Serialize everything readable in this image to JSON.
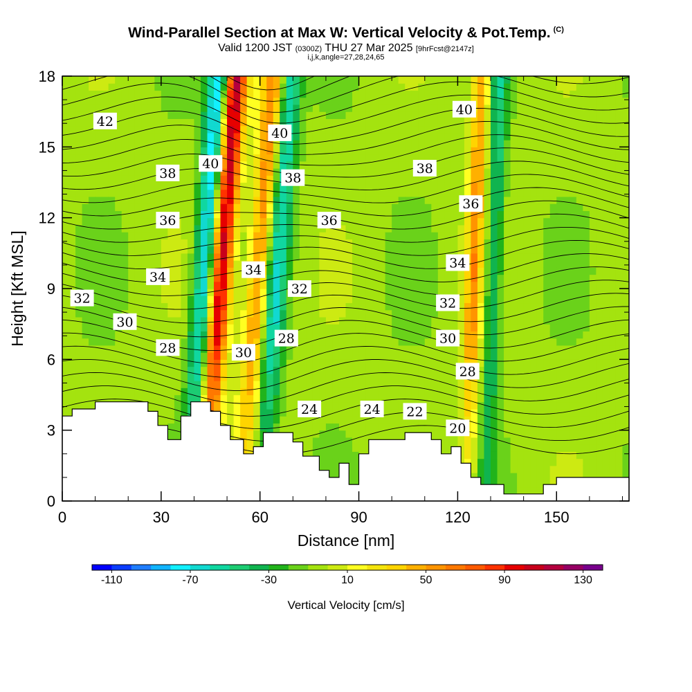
{
  "header": {
    "title": "Wind-Parallel Section at Max W: Vertical Velocity & Pot.Temp.",
    "title_mark": "(C)",
    "valid_prefix": "Valid 1200 JST",
    "valid_utc": "(0300Z)",
    "valid_date": "THU 27 Mar 2025",
    "forecast": "[9hrFcst@2147z]",
    "indices": "i,j,k,angle=27,28,24,65"
  },
  "chart_data": {
    "type": "heatmap",
    "xlabel": "Distance [nm]",
    "ylabel": "Height [Kft MSL]",
    "xlim": [
      0,
      172
    ],
    "ylim": [
      0,
      18
    ],
    "x_ticks": [
      "0",
      "30",
      "60",
      "90",
      "120",
      "150"
    ],
    "y_ticks": [
      "0",
      "3",
      "6",
      "9",
      "12",
      "15",
      "18"
    ],
    "colorbar": {
      "title": "Vertical Velocity [cm/s]",
      "tick_labels": [
        "-110",
        "-70",
        "-30",
        "10",
        "50",
        "90",
        "130"
      ],
      "levels_min": -120,
      "levels_max": 140,
      "level_step": 10,
      "colors": [
        "#0000ff",
        "#0a3cff",
        "#1f7dff",
        "#11b4ff",
        "#12f0ff",
        "#11d9d0",
        "#10d7a0",
        "#1ccc72",
        "#10b44f",
        "#21b31b",
        "#6ad21a",
        "#a4e30f",
        "#cdea12",
        "#ffff21",
        "#f4e40c",
        "#ffd400",
        "#ffb000",
        "#ff9400",
        "#ff7800",
        "#ff5a00",
        "#ff3200",
        "#e60000",
        "#c8001b",
        "#b4003e",
        "#960064",
        "#78008c"
      ]
    },
    "velocity_field": [
      {
        "label": "updraft",
        "x": 48,
        "w": 130
      },
      {
        "label": "downdraft",
        "x": 44,
        "w": -90
      },
      {
        "label": "updraft",
        "x": 60,
        "w": 70
      },
      {
        "label": "downdraft",
        "x": 65,
        "w": -60
      },
      {
        "label": "updraft",
        "x": 125,
        "w": 60
      },
      {
        "label": "downdraft",
        "x": 131,
        "w": -40
      }
    ],
    "theta_labels": [
      {
        "text": "42",
        "x": 13,
        "y": 16.1
      },
      {
        "text": "40",
        "x": 45,
        "y": 14.3
      },
      {
        "text": "40",
        "x": 66,
        "y": 15.6
      },
      {
        "text": "40",
        "x": 122,
        "y": 16.6
      },
      {
        "text": "38",
        "x": 32,
        "y": 13.9
      },
      {
        "text": "38",
        "x": 70,
        "y": 13.7
      },
      {
        "text": "38",
        "x": 110,
        "y": 14.1
      },
      {
        "text": "36",
        "x": 32,
        "y": 11.9
      },
      {
        "text": "36",
        "x": 81,
        "y": 11.9
      },
      {
        "text": "36",
        "x": 124,
        "y": 12.6
      },
      {
        "text": "34",
        "x": 29,
        "y": 9.5
      },
      {
        "text": "34",
        "x": 58,
        "y": 9.8
      },
      {
        "text": "34",
        "x": 120,
        "y": 10.1
      },
      {
        "text": "32",
        "x": 6,
        "y": 8.6
      },
      {
        "text": "32",
        "x": 72,
        "y": 9.0
      },
      {
        "text": "32",
        "x": 117,
        "y": 8.4
      },
      {
        "text": "30",
        "x": 19,
        "y": 7.6
      },
      {
        "text": "30",
        "x": 55,
        "y": 6.3
      },
      {
        "text": "30",
        "x": 117,
        "y": 6.9
      },
      {
        "text": "28",
        "x": 32,
        "y": 6.5
      },
      {
        "text": "28",
        "x": 68,
        "y": 6.9
      },
      {
        "text": "28",
        "x": 123,
        "y": 5.5
      },
      {
        "text": "24",
        "x": 75,
        "y": 3.9
      },
      {
        "text": "24",
        "x": 94,
        "y": 3.9
      },
      {
        "text": "22",
        "x": 107,
        "y": 3.8
      },
      {
        "text": "20",
        "x": 120,
        "y": 3.1
      }
    ],
    "terrain_ceiling": [
      [
        0,
        3.6
      ],
      [
        3,
        3.6
      ],
      [
        3,
        3.9
      ],
      [
        10,
        3.9
      ],
      [
        10,
        4.2
      ],
      [
        26,
        4.2
      ],
      [
        26,
        3.8
      ],
      [
        29,
        3.8
      ],
      [
        29,
        3.2
      ],
      [
        32,
        3.2
      ],
      [
        32,
        2.6
      ],
      [
        36,
        2.6
      ],
      [
        36,
        3.6
      ],
      [
        39,
        3.6
      ],
      [
        39,
        4.2
      ],
      [
        45,
        4.2
      ],
      [
        45,
        3.8
      ],
      [
        48,
        3.8
      ],
      [
        48,
        3.2
      ],
      [
        51,
        3.2
      ],
      [
        51,
        2.6
      ],
      [
        55,
        2.6
      ],
      [
        55,
        2.0
      ],
      [
        58,
        2.0
      ],
      [
        58,
        2.3
      ],
      [
        61,
        2.3
      ],
      [
        61,
        2.9
      ],
      [
        70,
        2.9
      ],
      [
        70,
        2.5
      ],
      [
        73,
        2.5
      ],
      [
        73,
        1.9
      ],
      [
        78,
        1.9
      ],
      [
        78,
        1.3
      ],
      [
        81,
        1.3
      ],
      [
        81,
        1.0
      ],
      [
        84,
        1.0
      ],
      [
        84,
        1.6
      ],
      [
        87,
        1.6
      ],
      [
        87,
        0.7
      ],
      [
        90,
        0.7
      ],
      [
        90,
        2.0
      ],
      [
        93,
        2.0
      ],
      [
        93,
        2.6
      ],
      [
        104,
        2.6
      ],
      [
        104,
        2.9
      ],
      [
        112,
        2.9
      ],
      [
        112,
        2.6
      ],
      [
        115,
        2.6
      ],
      [
        115,
        2.0
      ],
      [
        118,
        2.0
      ],
      [
        118,
        2.3
      ],
      [
        121,
        2.3
      ],
      [
        121,
        1.6
      ],
      [
        124,
        1.6
      ],
      [
        124,
        1.0
      ],
      [
        127,
        1.0
      ],
      [
        127,
        0.7
      ],
      [
        134,
        0.7
      ],
      [
        134,
        0.3
      ],
      [
        146,
        0.3
      ],
      [
        146,
        0.7
      ],
      [
        150,
        0.7
      ],
      [
        150,
        1.0
      ],
      [
        172,
        1.0
      ]
    ]
  }
}
